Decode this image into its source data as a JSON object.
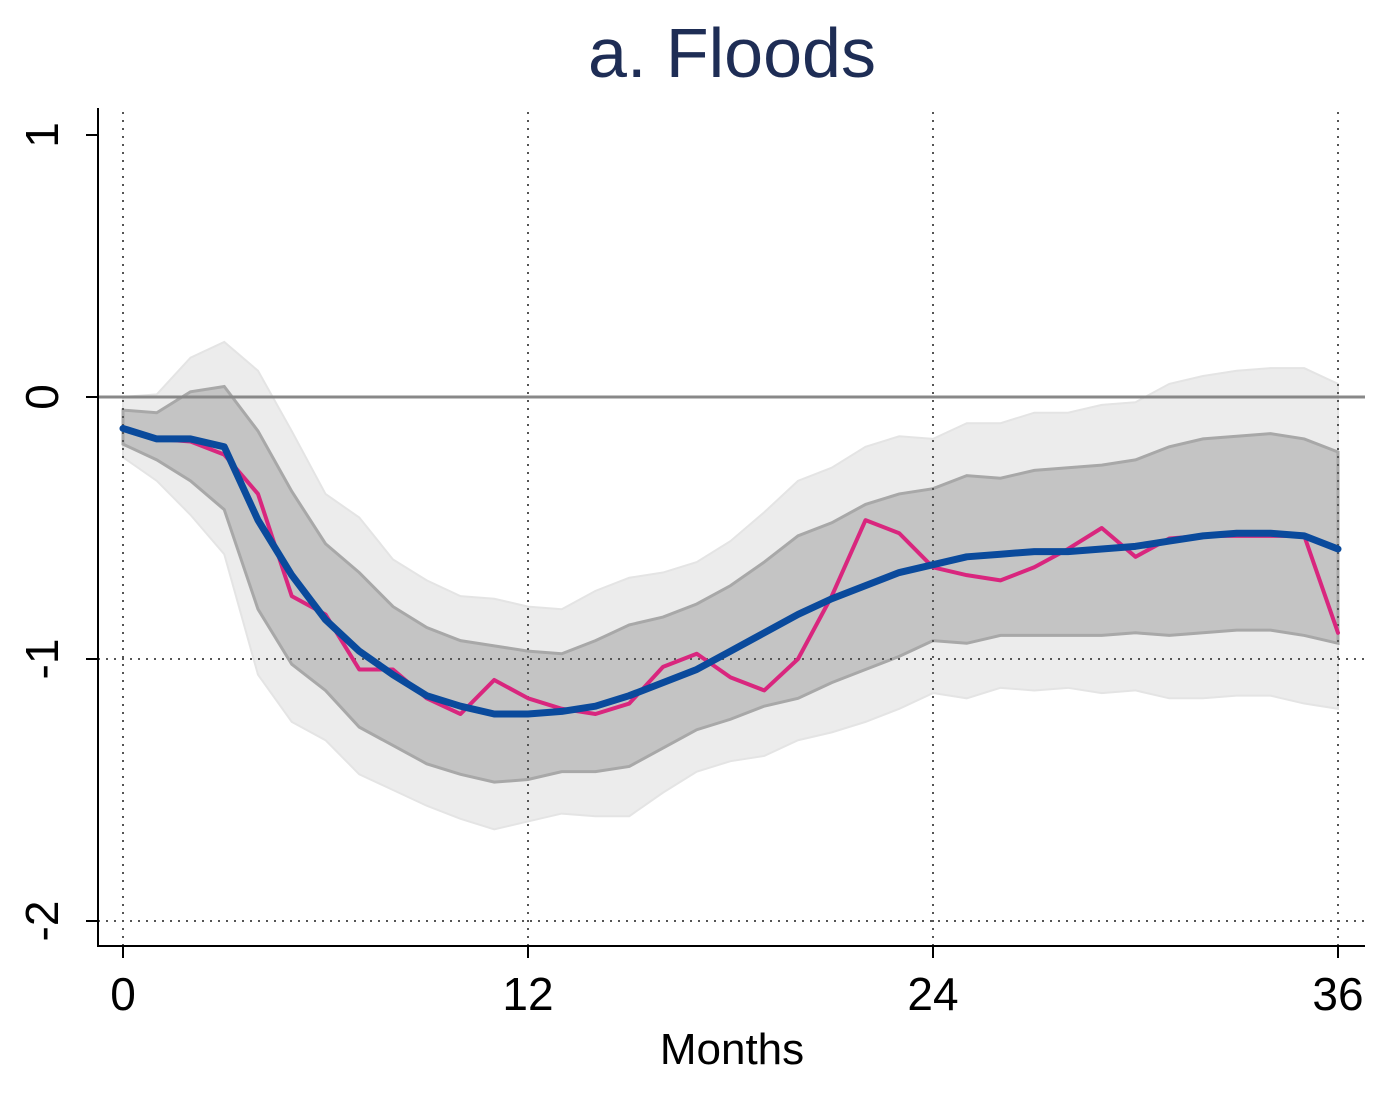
{
  "chart_data": {
    "type": "line",
    "title": "a. Floods",
    "xlabel": "Months",
    "ylabel": "",
    "xlim": [
      0,
      36
    ],
    "ylim": [
      -2,
      1
    ],
    "xticks": [
      0,
      12,
      24,
      36
    ],
    "yticks": [
      -2,
      -1,
      0,
      1
    ],
    "grid": "dotted vertical at x ticks, dotted horizontal at -1 and -2, solid reference line at 0",
    "x": [
      0,
      1,
      2,
      3,
      4,
      5,
      6,
      7,
      8,
      9,
      10,
      11,
      12,
      13,
      14,
      15,
      16,
      17,
      18,
      19,
      20,
      21,
      22,
      23,
      24,
      25,
      26,
      27,
      28,
      29,
      30,
      31,
      32,
      33,
      34,
      35,
      36
    ],
    "series": [
      {
        "role": "outer-band",
        "color": "#ececec",
        "upper": [
          0.0,
          0.01,
          0.15,
          0.21,
          0.1,
          -0.13,
          -0.37,
          -0.46,
          -0.62,
          -0.7,
          -0.76,
          -0.77,
          -0.8,
          -0.81,
          -0.74,
          -0.69,
          -0.67,
          -0.63,
          -0.55,
          -0.44,
          -0.32,
          -0.27,
          -0.19,
          -0.15,
          -0.16,
          -0.1,
          -0.1,
          -0.06,
          -0.06,
          -0.03,
          -0.02,
          0.05,
          0.08,
          0.1,
          0.11,
          0.11,
          0.05
        ],
        "lower": [
          -0.23,
          -0.32,
          -0.45,
          -0.6,
          -1.06,
          -1.24,
          -1.31,
          -1.44,
          -1.5,
          -1.56,
          -1.61,
          -1.65,
          -1.62,
          -1.59,
          -1.6,
          -1.6,
          -1.51,
          -1.43,
          -1.39,
          -1.37,
          -1.31,
          -1.28,
          -1.24,
          -1.19,
          -1.13,
          -1.15,
          -1.11,
          -1.12,
          -1.11,
          -1.13,
          -1.12,
          -1.15,
          -1.15,
          -1.14,
          -1.14,
          -1.17,
          -1.19
        ]
      },
      {
        "role": "inner-band",
        "color": "#c4c4c4",
        "upper": [
          -0.05,
          -0.06,
          0.02,
          0.04,
          -0.13,
          -0.36,
          -0.56,
          -0.67,
          -0.8,
          -0.88,
          -0.93,
          -0.95,
          -0.97,
          -0.98,
          -0.93,
          -0.87,
          -0.84,
          -0.79,
          -0.72,
          -0.63,
          -0.53,
          -0.48,
          -0.41,
          -0.37,
          -0.35,
          -0.3,
          -0.31,
          -0.28,
          -0.27,
          -0.26,
          -0.24,
          -0.19,
          -0.16,
          -0.15,
          -0.14,
          -0.16,
          -0.21
        ],
        "lower": [
          -0.18,
          -0.24,
          -0.32,
          -0.43,
          -0.81,
          -1.02,
          -1.12,
          -1.26,
          -1.33,
          -1.4,
          -1.44,
          -1.47,
          -1.46,
          -1.43,
          -1.43,
          -1.41,
          -1.34,
          -1.27,
          -1.23,
          -1.18,
          -1.15,
          -1.09,
          -1.04,
          -0.99,
          -0.93,
          -0.94,
          -0.91,
          -0.91,
          -0.91,
          -0.91,
          -0.9,
          -0.91,
          -0.9,
          -0.89,
          -0.89,
          -0.91,
          -0.94
        ]
      },
      {
        "role": "raw-estimate",
        "color": "#d9267e",
        "values": [
          -0.12,
          -0.16,
          -0.17,
          -0.22,
          -0.37,
          -0.76,
          -0.83,
          -1.04,
          -1.04,
          -1.15,
          -1.21,
          -1.08,
          -1.15,
          -1.19,
          -1.21,
          -1.17,
          -1.03,
          -0.98,
          -1.07,
          -1.12,
          -1.0,
          -0.76,
          -0.47,
          -0.52,
          -0.65,
          -0.68,
          -0.7,
          -0.65,
          -0.58,
          -0.5,
          -0.61,
          -0.54,
          -0.53,
          -0.53,
          -0.53,
          -0.53,
          -0.9
        ]
      },
      {
        "role": "smoothed-estimate",
        "color": "#0a4a9c",
        "values": [
          -0.12,
          -0.16,
          -0.16,
          -0.19,
          -0.47,
          -0.68,
          -0.85,
          -0.97,
          -1.06,
          -1.14,
          -1.18,
          -1.21,
          -1.21,
          -1.2,
          -1.18,
          -1.14,
          -1.09,
          -1.04,
          -0.97,
          -0.9,
          -0.83,
          -0.77,
          -0.72,
          -0.67,
          -0.64,
          -0.61,
          -0.6,
          -0.59,
          -0.59,
          -0.58,
          -0.57,
          -0.55,
          -0.53,
          -0.52,
          -0.52,
          -0.53,
          -0.58
        ]
      }
    ]
  }
}
